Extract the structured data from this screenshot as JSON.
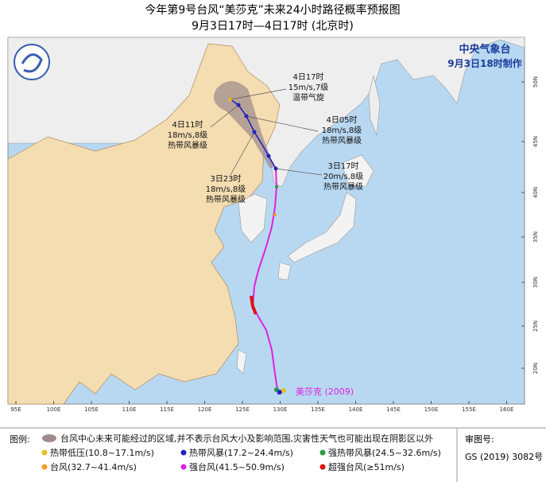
{
  "header": {
    "title": "今年第9号台风“美莎克”未来24小时路径概率预报图",
    "subtitle": "9月3日17时—4日17时 (北京时)",
    "agency": "中央气象台",
    "issued": "9月3日18时制作"
  },
  "annotations": [
    {
      "time": "4日17时",
      "wind": "15m/s,7级",
      "grade": "温带气旋"
    },
    {
      "time": "4日05时",
      "wind": "18m/s,8级",
      "grade": "热带风暴级"
    },
    {
      "time": "4日11时",
      "wind": "18m/s,8级",
      "grade": "热带风暴级"
    },
    {
      "time": "3日23时",
      "wind": "18m/s,8级",
      "grade": "热带风暴级"
    },
    {
      "time": "3日17时",
      "wind": "20m/s,8级",
      "grade": "热带风暴级"
    }
  ],
  "storm_label": "美莎克 (2009)",
  "longitudes": [
    "95E",
    "100E",
    "105E",
    "110E",
    "115E",
    "120E",
    "125E",
    "130E",
    "135E",
    "140E",
    "145E",
    "150E",
    "155E",
    "160E"
  ],
  "latitudes": [
    "50N",
    "45N",
    "40N",
    "35N",
    "30N",
    "25N",
    "20N"
  ],
  "legend": {
    "heading": "图例:",
    "cone": "台风中心未来可能经过的区域,并不表示台风大小及影响范围,灾害性天气也可能出现在阴影区以外",
    "items": [
      {
        "label": "热带低压(10.8~17.1m/s)",
        "color": "#e8c020"
      },
      {
        "label": "热带风暴(17.2~24.4m/s)",
        "color": "#2020c0"
      },
      {
        "label": "强热带风暴(24.5~32.6m/s)",
        "color": "#2a9a40"
      },
      {
        "label": "台风(32.7~41.4m/s)",
        "color": "#f0a020"
      },
      {
        "label": "强台风(41.5~50.9m/s)",
        "color": "#e020e0"
      },
      {
        "label": "超强台风(≥51m/s)",
        "color": "#e01010"
      }
    ]
  },
  "footer": {
    "review_label": "审图号:",
    "review_number": "GS (2019) 3082号"
  }
}
